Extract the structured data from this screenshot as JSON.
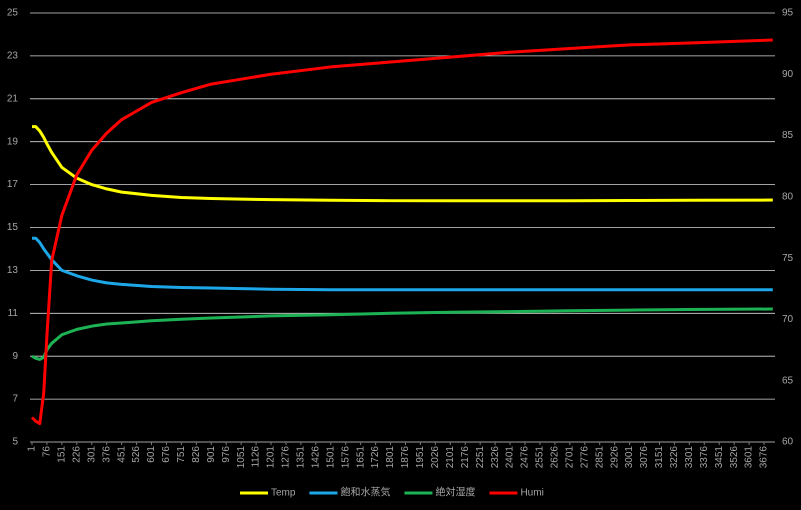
{
  "chart_data": {
    "type": "line",
    "x": [
      1,
      20,
      40,
      60,
      76,
      100,
      151,
      226,
      301,
      376,
      451,
      601,
      751,
      901,
      1051,
      1201,
      1501,
      1801,
      2101,
      2401,
      2701,
      3001,
      3301,
      3720
    ],
    "series": [
      {
        "name": "Temp",
        "color": "#ffff00",
        "values": [
          19.7,
          19.7,
          19.5,
          19.2,
          18.9,
          18.5,
          17.8,
          17.3,
          17.0,
          16.8,
          16.65,
          16.5,
          16.4,
          16.35,
          16.32,
          16.3,
          16.27,
          16.25,
          16.25,
          16.25,
          16.25,
          16.26,
          16.27,
          16.28
        ]
      },
      {
        "name": "飽和水蒸気",
        "color": "#1ea7e8",
        "values": [
          14.5,
          14.5,
          14.3,
          14.0,
          13.8,
          13.5,
          13.0,
          12.75,
          12.55,
          12.42,
          12.35,
          12.25,
          12.2,
          12.18,
          12.15,
          12.12,
          12.1,
          12.1,
          12.1,
          12.1,
          12.1,
          12.1,
          12.1,
          12.1
        ]
      },
      {
        "name": "絶対湿度",
        "color": "#1db354",
        "values": [
          9.0,
          8.9,
          8.85,
          8.95,
          9.3,
          9.6,
          10.0,
          10.25,
          10.4,
          10.5,
          10.55,
          10.65,
          10.72,
          10.78,
          10.83,
          10.88,
          10.93,
          11.0,
          11.05,
          11.08,
          11.12,
          11.15,
          11.18,
          11.2
        ]
      },
      {
        "name": "Humi",
        "color": "#ff0000",
        "axis": "y2",
        "values": [
          62.0,
          61.7,
          61.5,
          64.0,
          68.7,
          74.8,
          78.5,
          81.8,
          83.8,
          85.2,
          86.3,
          87.7,
          88.5,
          89.2,
          89.6,
          90.0,
          90.6,
          91.0,
          91.4,
          91.8,
          92.1,
          92.4,
          92.55,
          92.8
        ]
      }
    ],
    "xlim": [
      -9,
      3731
    ],
    "xticks": [
      1,
      76,
      151,
      226,
      301,
      376,
      451,
      526,
      601,
      676,
      751,
      826,
      901,
      976,
      1051,
      1126,
      1201,
      1276,
      1351,
      1426,
      1501,
      1576,
      1651,
      1726,
      1801,
      1876,
      1951,
      2026,
      2101,
      2176,
      2251,
      2326,
      2401,
      2476,
      2551,
      2626,
      2701,
      2776,
      2851,
      2926,
      3001,
      3076,
      3151,
      3226,
      3301,
      3376,
      3451,
      3526,
      3601,
      3676
    ],
    "ylim": [
      5,
      25
    ],
    "yticks": [
      5,
      7,
      9,
      11,
      13,
      15,
      17,
      19,
      21,
      23,
      25
    ],
    "y2lim": [
      60,
      95
    ],
    "y2ticks": [
      60,
      65,
      70,
      75,
      80,
      85,
      90,
      95
    ],
    "grid": true,
    "legend": "bottom"
  }
}
